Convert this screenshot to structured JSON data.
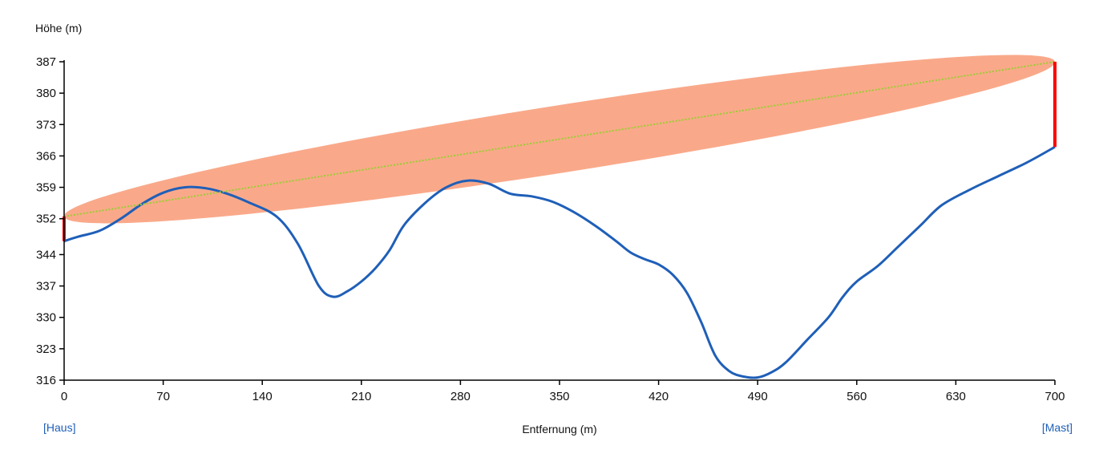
{
  "chart_data": {
    "type": "line",
    "ylabel": "Höhe (m)",
    "xlabel": "Entfernung (m)",
    "x_ticks": [
      0,
      70,
      140,
      210,
      280,
      350,
      420,
      490,
      560,
      630,
      700
    ],
    "y_ticks": [
      316,
      323,
      330,
      337,
      344,
      352,
      359,
      366,
      373,
      380,
      387
    ],
    "xlim": [
      0,
      700
    ],
    "ylim": [
      316,
      387
    ],
    "grid": false,
    "terrain": {
      "x": [
        0,
        10,
        25,
        40,
        55,
        70,
        85,
        100,
        115,
        130,
        150,
        165,
        180,
        190,
        200,
        210,
        220,
        230,
        240,
        255,
        270,
        285,
        300,
        315,
        330,
        345,
        360,
        375,
        390,
        400,
        410,
        420,
        430,
        440,
        450,
        460,
        470,
        480,
        490,
        500,
        510,
        525,
        540,
        550,
        560,
        575,
        590,
        605,
        620,
        640,
        660,
        680,
        700
      ],
      "y": [
        347.0,
        348.0,
        349.3,
        352.0,
        355.3,
        357.8,
        359.0,
        358.8,
        357.6,
        355.7,
        352.5,
        346.5,
        337.0,
        334.6,
        335.8,
        338.0,
        341.0,
        345.0,
        350.5,
        355.5,
        359.0,
        360.5,
        359.8,
        357.6,
        357.0,
        355.8,
        353.5,
        350.5,
        347.0,
        344.5,
        343.0,
        341.8,
        339.5,
        335.5,
        329.0,
        321.5,
        318.0,
        316.8,
        316.6,
        317.8,
        320.0,
        325.0,
        330.0,
        334.5,
        338.0,
        341.5,
        346.0,
        350.5,
        355.0,
        358.5,
        361.5,
        364.5,
        368.0
      ],
      "color": "#1f5fb8"
    },
    "line_of_sight": {
      "x": [
        0,
        700
      ],
      "y": [
        352.5,
        387.0
      ],
      "color": "#9acd32"
    },
    "fresnel_zone": {
      "color": "#f9a98a"
    },
    "antenna_markers": [
      {
        "x": 0,
        "y_from": 347.0,
        "y_to": 352.5
      },
      {
        "x": 700,
        "y_from": 368.0,
        "y_to": 387.0
      }
    ],
    "marker_color": "#ff0000"
  },
  "links": {
    "start": "[Haus]",
    "end": "[Mast]"
  }
}
